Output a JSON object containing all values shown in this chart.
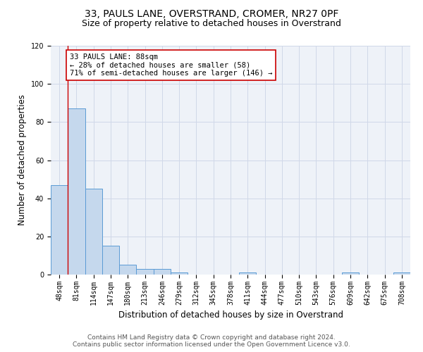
{
  "title": "33, PAULS LANE, OVERSTRAND, CROMER, NR27 0PF",
  "subtitle": "Size of property relative to detached houses in Overstrand",
  "xlabel": "Distribution of detached houses by size in Overstrand",
  "ylabel": "Number of detached properties",
  "bar_values": [
    47,
    87,
    45,
    15,
    5,
    3,
    3,
    1,
    0,
    0,
    0,
    1,
    0,
    0,
    0,
    0,
    0,
    1,
    0,
    0,
    1
  ],
  "bar_labels": [
    "48sqm",
    "81sqm",
    "114sqm",
    "147sqm",
    "180sqm",
    "213sqm",
    "246sqm",
    "279sqm",
    "312sqm",
    "345sqm",
    "378sqm",
    "411sqm",
    "444sqm",
    "477sqm",
    "510sqm",
    "543sqm",
    "576sqm",
    "609sqm",
    "642sqm",
    "675sqm",
    "708sqm"
  ],
  "bar_color": "#c5d8ed",
  "bar_edgecolor": "#5b9bd5",
  "vline_x_index": 1,
  "vline_color": "#cc0000",
  "annotation_text": "33 PAULS LANE: 88sqm\n← 28% of detached houses are smaller (58)\n71% of semi-detached houses are larger (146) →",
  "annotation_box_edgecolor": "#cc0000",
  "ylim": [
    0,
    120
  ],
  "yticks": [
    0,
    20,
    40,
    60,
    80,
    100,
    120
  ],
  "grid_color": "#d0d8e8",
  "background_color": "#eef2f8",
  "footer_text": "Contains HM Land Registry data © Crown copyright and database right 2024.\nContains public sector information licensed under the Open Government Licence v3.0.",
  "title_fontsize": 10,
  "subtitle_fontsize": 9,
  "ylabel_fontsize": 8.5,
  "xlabel_fontsize": 8.5,
  "tick_fontsize": 7,
  "annotation_fontsize": 7.5,
  "footer_fontsize": 6.5
}
